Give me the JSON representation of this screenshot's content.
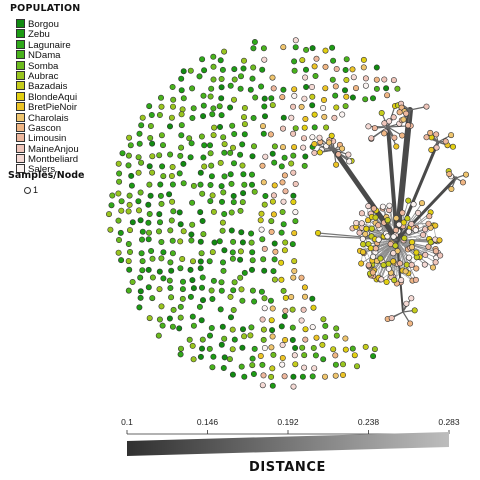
{
  "legend": {
    "title": "POPULATION",
    "items": [
      {
        "label": "Borgou",
        "color": "#118a11"
      },
      {
        "label": "Zebu",
        "color": "#1d9b14"
      },
      {
        "label": "Lagunaire",
        "color": "#2fa81a"
      },
      {
        "label": "NDama",
        "color": "#48b21c"
      },
      {
        "label": "Somba",
        "color": "#6cbb1e"
      },
      {
        "label": "Aubrac",
        "color": "#99c51f"
      },
      {
        "label": "Bazadais",
        "color": "#c5cc1c"
      },
      {
        "label": "BlondeAqui",
        "color": "#e2cf12"
      },
      {
        "label": "BretPieNoir",
        "color": "#ecc426"
      },
      {
        "label": "Charolais",
        "color": "#efc56e"
      },
      {
        "label": "Gascon",
        "color": "#f0b684"
      },
      {
        "label": "Limousin",
        "color": "#edb79d"
      },
      {
        "label": "MaineAnjou",
        "color": "#f0c6bb"
      },
      {
        "label": "Montbeliard",
        "color": "#f5dad5"
      },
      {
        "label": "Salers",
        "color": "#fbf4f2"
      }
    ]
  },
  "size_legend": {
    "title": "Samples/Node",
    "item": "1"
  },
  "distance_scale": {
    "title": "DISTANCE",
    "ticks": [
      "0.1",
      "0.146",
      "0.192",
      "0.238",
      "0.283"
    ],
    "min": 0.1,
    "max": 0.283,
    "color_low": "#303030",
    "color_high": "#bdbdbd"
  }
}
